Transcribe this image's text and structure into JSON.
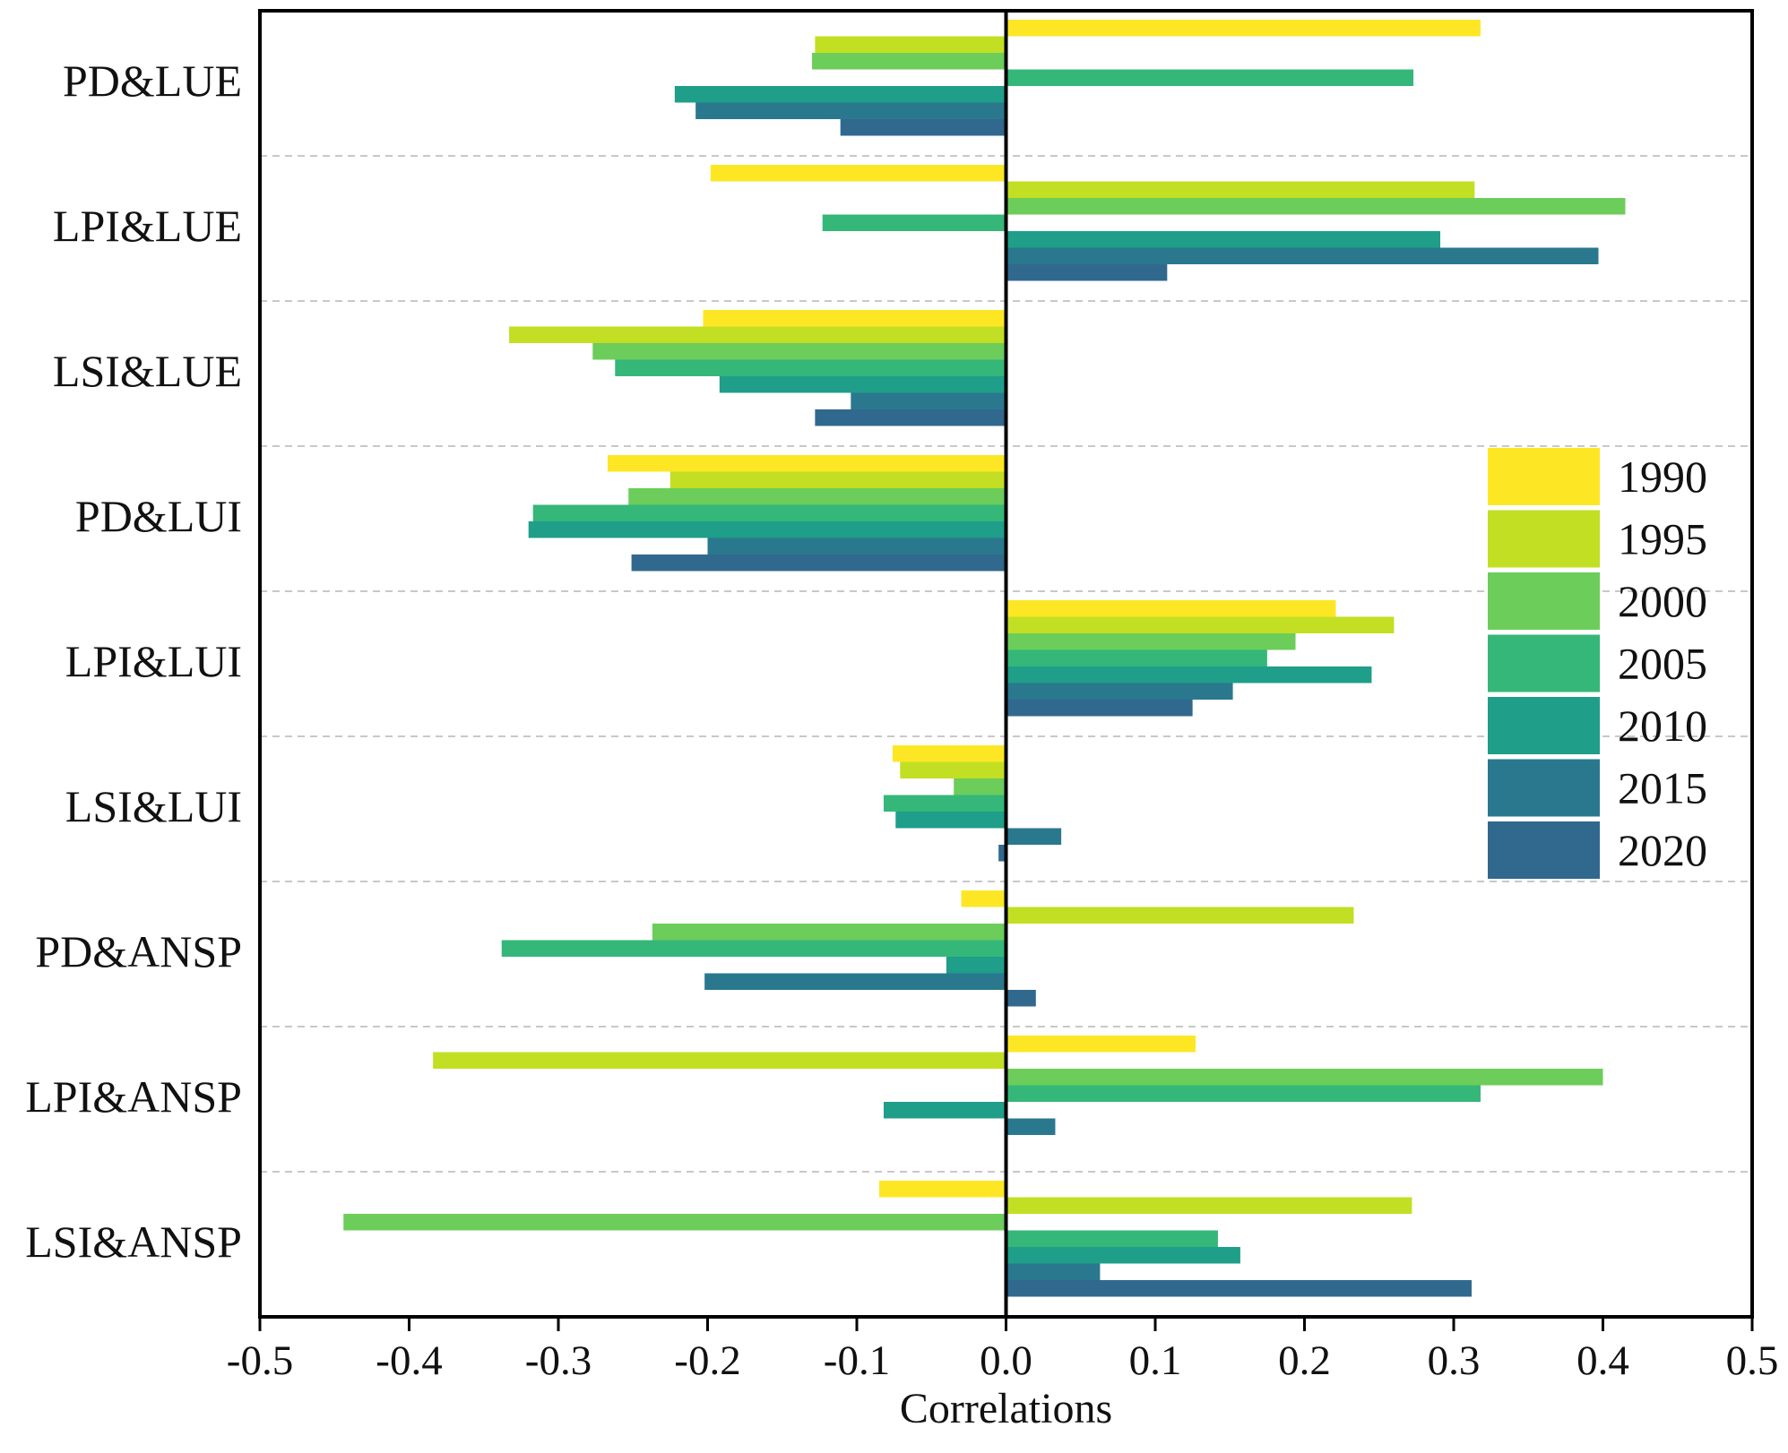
{
  "chart_data": {
    "type": "bar",
    "orientation": "horizontal",
    "title": "",
    "xlabel": "Correlations",
    "ylabel": "",
    "xlim": [
      -0.5,
      0.5
    ],
    "xticks": [
      "-0.5",
      "-0.4",
      "-0.3",
      "-0.2",
      "-0.1",
      "0.0",
      "0.1",
      "0.2",
      "0.3",
      "0.4",
      "0.5"
    ],
    "xtick_values": [
      -0.5,
      -0.4,
      -0.3,
      -0.2,
      -0.1,
      0.0,
      0.1,
      0.2,
      0.3,
      0.4,
      0.5
    ],
    "grid": "dashed horizontal separators between categories",
    "legend_position": "right",
    "categories": [
      "PD&LUE",
      "LPI&LUE",
      "LSI&LUE",
      "PD&LUI",
      "LPI&LUI",
      "LSI&LUI",
      "PD&ANSP",
      "LPI&ANSP",
      "LSI&ANSP"
    ],
    "series": [
      {
        "name": "1990",
        "color": "#fde725",
        "values": [
          0.318,
          -0.198,
          -0.203,
          -0.267,
          0.221,
          -0.076,
          -0.03,
          0.127,
          -0.085
        ]
      },
      {
        "name": "1995",
        "color": "#c2df23",
        "values": [
          -0.128,
          0.314,
          -0.333,
          -0.225,
          0.26,
          -0.071,
          0.233,
          -0.384,
          0.272
        ]
      },
      {
        "name": "2000",
        "color": "#6ccd5a",
        "values": [
          -0.13,
          0.415,
          -0.277,
          -0.253,
          0.194,
          -0.035,
          -0.237,
          0.4,
          -0.444
        ]
      },
      {
        "name": "2005",
        "color": "#35b779",
        "values": [
          0.273,
          -0.123,
          -0.262,
          -0.317,
          0.175,
          -0.082,
          -0.338,
          0.318,
          0.142
        ]
      },
      {
        "name": "2010",
        "color": "#1f9e89",
        "values": [
          -0.222,
          0.291,
          -0.192,
          -0.32,
          0.245,
          -0.074,
          -0.04,
          -0.082,
          0.157
        ]
      },
      {
        "name": "2015",
        "color": "#2a788e",
        "values": [
          -0.208,
          0.397,
          -0.104,
          -0.2,
          0.152,
          0.037,
          -0.202,
          0.033,
          0.063
        ]
      },
      {
        "name": "2020",
        "color": "#31688e",
        "values": [
          -0.111,
          0.108,
          -0.128,
          -0.251,
          0.125,
          -0.005,
          0.02,
          0.0,
          0.312
        ]
      }
    ]
  }
}
